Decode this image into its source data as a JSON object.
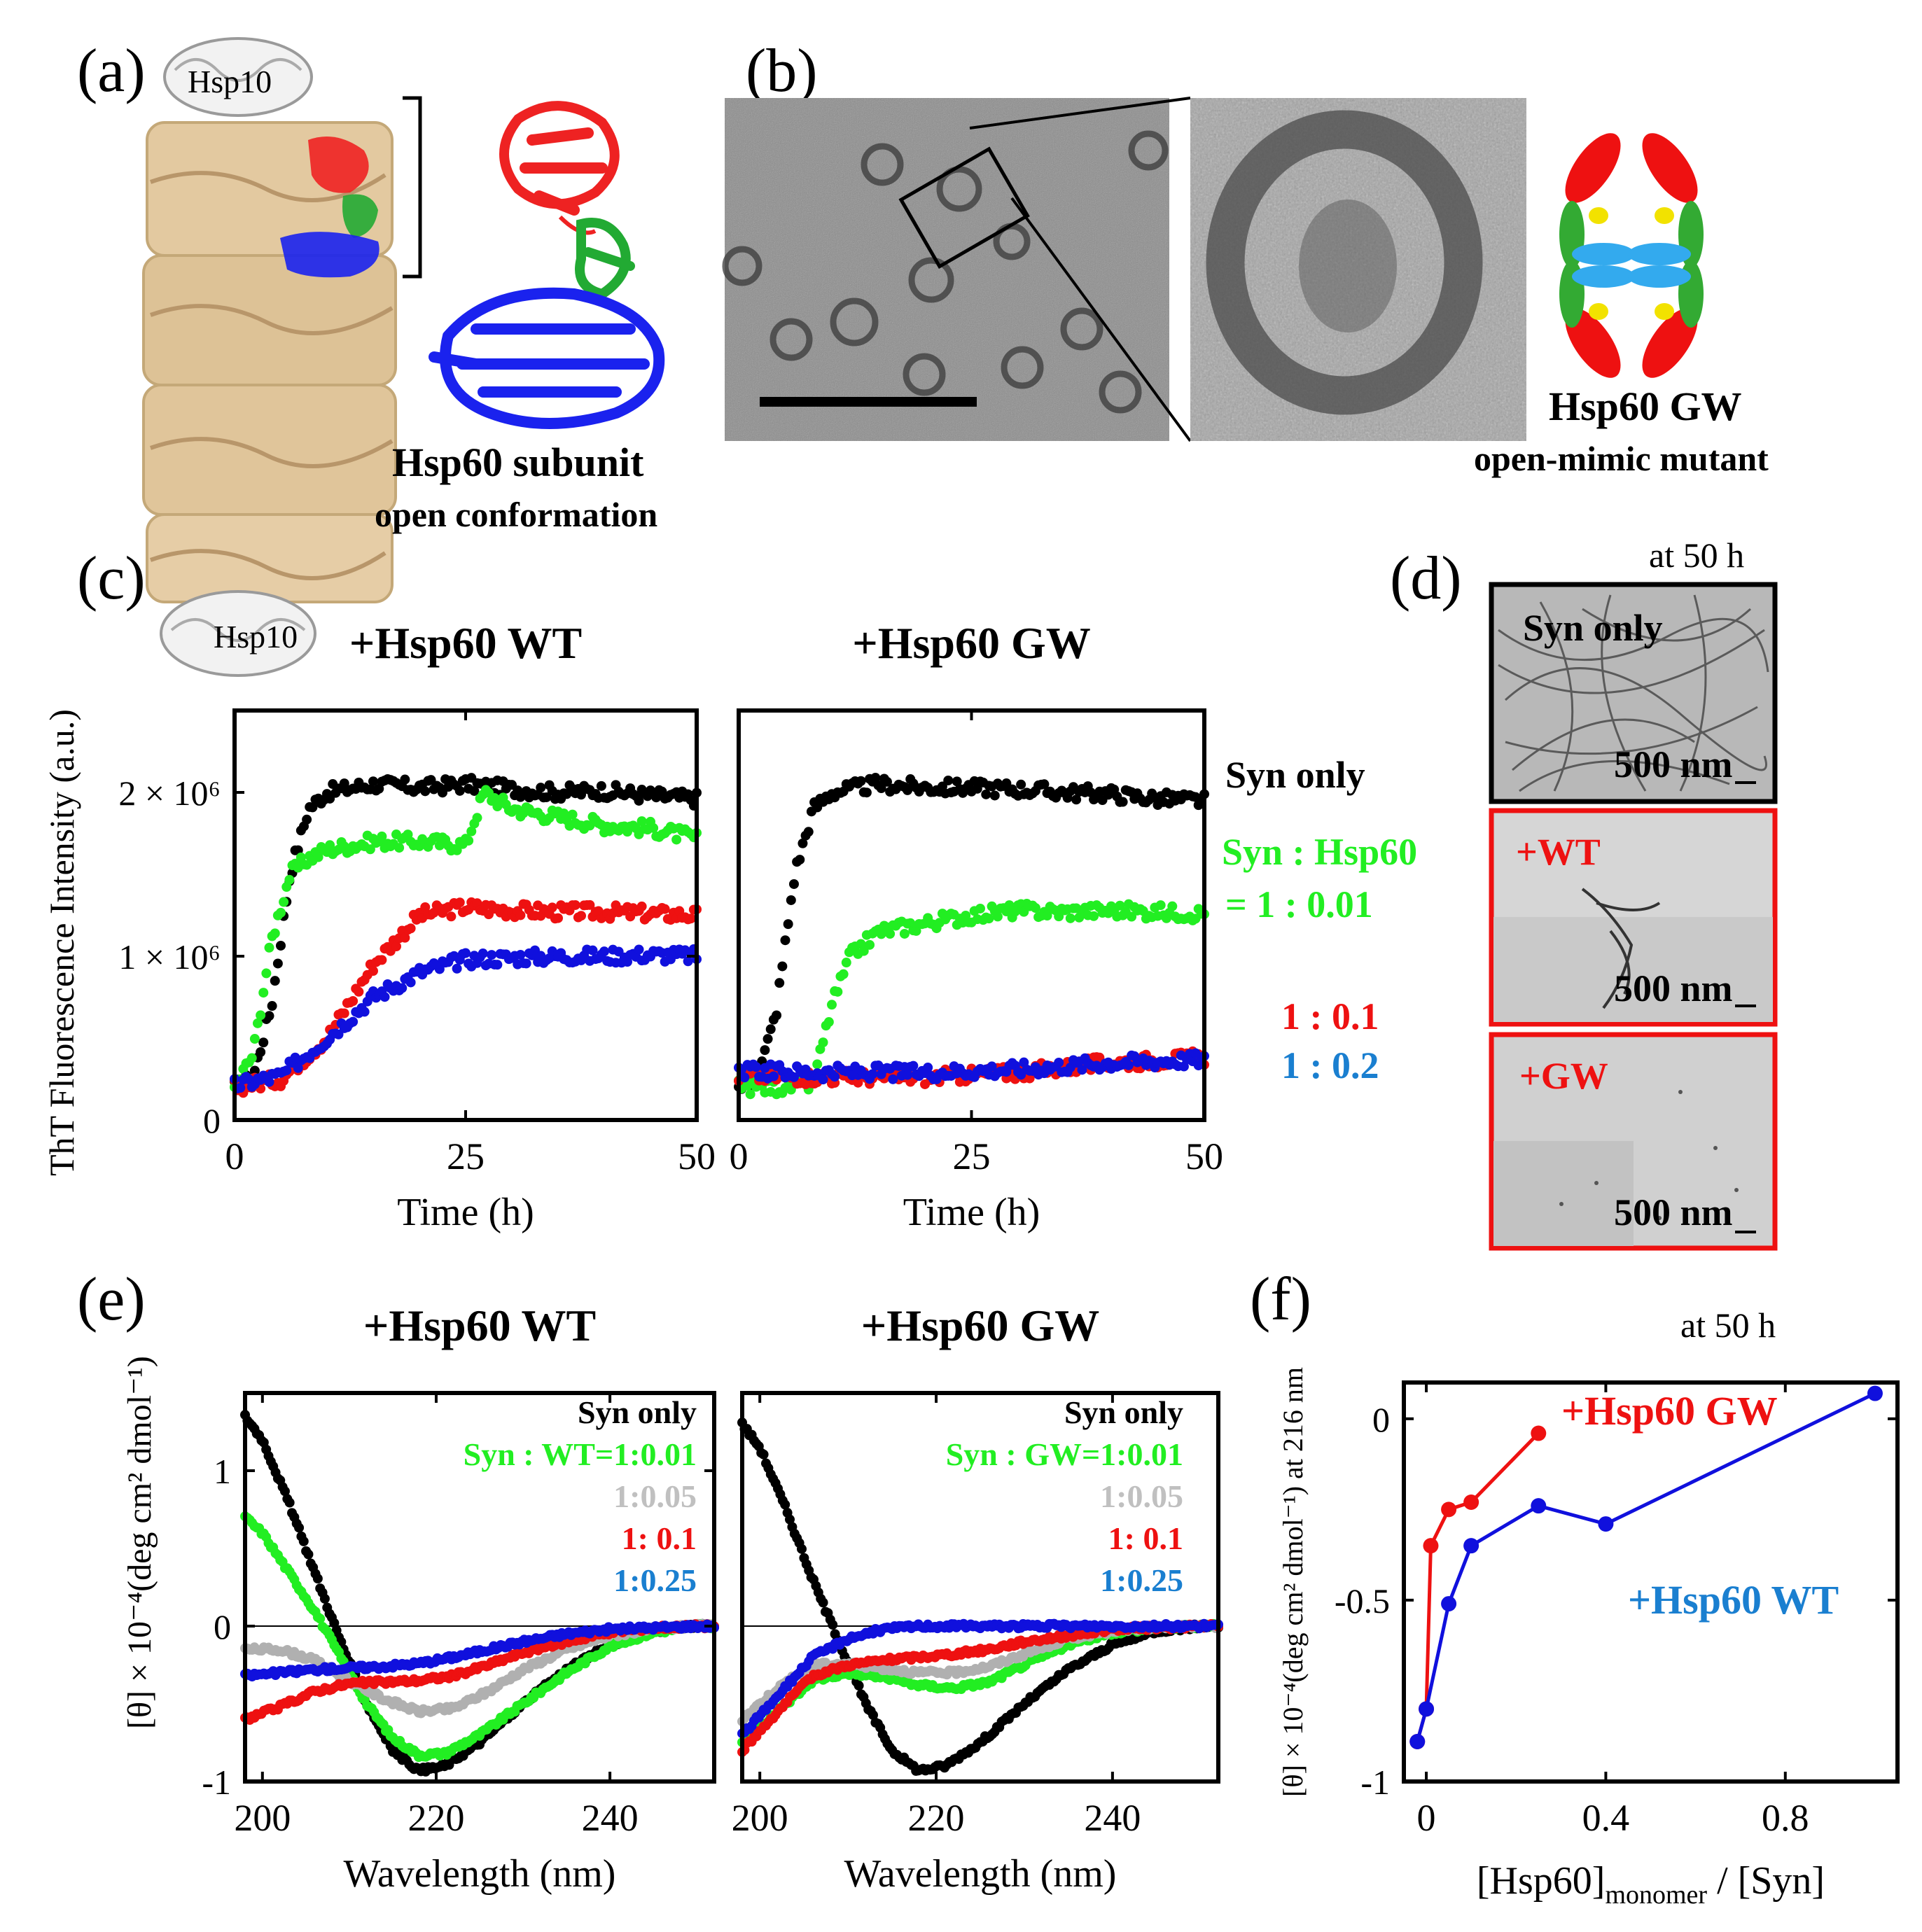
{
  "panels": {
    "a": {
      "label": "(a)",
      "hsp10_top": "Hsp10",
      "hsp10_bottom": "Hsp10",
      "subunit_title": "Hsp60 subunit",
      "subunit_subtitle": "open conformation"
    },
    "b": {
      "label": "(b)",
      "mutant_title": "Hsp60 GW",
      "mutant_subtitle": "open-mimic mutant"
    },
    "c": {
      "label": "(c)",
      "ylabel": "ThT Fluorescence Intensity (a.u.)",
      "legend": {
        "syn_only": "Syn only",
        "ratio_header": "Syn : Hsp60",
        "ratio_001": "= 1 : 0.01",
        "ratio_01": "1 : 0.1",
        "ratio_02": "1 : 0.2"
      }
    },
    "d": {
      "label": "(d)",
      "time_note": "at 50 h",
      "images": [
        {
          "label": "Syn only",
          "scale": "500 nm"
        },
        {
          "label": "+WT",
          "scale": "500 nm"
        },
        {
          "label": "+GW",
          "scale": "500 nm"
        }
      ]
    },
    "e": {
      "label": "(e)",
      "ylabel": "[θ] × 10⁻⁴(deg cm² dmol⁻¹)",
      "legend_wt": [
        "Syn only",
        "Syn : WT=1:0.01",
        "1:0.05",
        "1:  0.1",
        "1:0.25"
      ],
      "legend_gw": [
        "Syn only",
        "Syn : GW=1:0.01",
        "1:0.05",
        "1:  0.1",
        "1:0.25"
      ]
    },
    "f": {
      "label": "(f)",
      "time_note": "at 50 h"
    }
  },
  "colors": {
    "black": "#000000",
    "green": "#22ee22",
    "red": "#ee1111",
    "blue": "#1010dd",
    "gray": "#b0b0b0",
    "teal": "#1a7fd0"
  },
  "chart_data": [
    {
      "id": "c-wt",
      "type": "scatter",
      "title": "+Hsp60 WT",
      "xlabel": "Time (h)",
      "ylabel": "ThT Fluorescence Intensity (a.u.)",
      "xlim": [
        0,
        50
      ],
      "ylim": [
        0,
        2500000
      ],
      "xticks": [
        "0",
        "25",
        "50"
      ],
      "yticks": [
        "0",
        "1 × 10⁶",
        "2 × 10⁶"
      ],
      "series": [
        {
          "name": "Syn only",
          "x": [
            0,
            2,
            4,
            6,
            8,
            10,
            15,
            20,
            25,
            30,
            35,
            40,
            45,
            50
          ],
          "y": [
            200000,
            260000,
            700000,
            1500000,
            1900000,
            2000000,
            2050000,
            2030000,
            2050000,
            2020000,
            2000000,
            2010000,
            1980000,
            1960000
          ]
        },
        {
          "name": "1 : 0.01",
          "x": [
            0,
            2,
            4,
            6,
            8,
            10,
            15,
            20,
            25,
            27,
            30,
            35,
            40,
            45,
            50
          ],
          "y": [
            200000,
            400000,
            1100000,
            1500000,
            1600000,
            1650000,
            1700000,
            1700000,
            1680000,
            2000000,
            1900000,
            1850000,
            1800000,
            1780000,
            1720000
          ]
        },
        {
          "name": "1 : 0.1",
          "x": [
            0,
            5,
            10,
            15,
            20,
            25,
            30,
            35,
            40,
            45,
            50
          ],
          "y": [
            200000,
            250000,
            500000,
            950000,
            1250000,
            1300000,
            1280000,
            1270000,
            1270000,
            1260000,
            1250000
          ]
        },
        {
          "name": "1 : 0.2",
          "x": [
            0,
            5,
            10,
            15,
            20,
            25,
            30,
            35,
            40,
            45,
            50
          ],
          "y": [
            210000,
            270000,
            500000,
            750000,
            900000,
            980000,
            990000,
            1000000,
            1000000,
            1010000,
            1000000
          ]
        }
      ]
    },
    {
      "id": "c-gw",
      "type": "scatter",
      "title": "+Hsp60 GW",
      "xlabel": "Time (h)",
      "xlim": [
        0,
        50
      ],
      "ylim": [
        0,
        2500000
      ],
      "xticks": [
        "0",
        "25",
        "50"
      ],
      "series": [
        {
          "name": "Syn only",
          "x": [
            0,
            2,
            4,
            6,
            8,
            10,
            15,
            20,
            25,
            30,
            35,
            40,
            45,
            50
          ],
          "y": [
            200000,
            250000,
            650000,
            1500000,
            1900000,
            2000000,
            2050000,
            2030000,
            2030000,
            2020000,
            2000000,
            1990000,
            1960000,
            1950000
          ]
        },
        {
          "name": "1 : 0.01",
          "x": [
            0,
            5,
            8,
            10,
            12,
            15,
            20,
            25,
            30,
            35,
            40,
            45,
            50
          ],
          "y": [
            200000,
            200000,
            220000,
            700000,
            1000000,
            1150000,
            1200000,
            1250000,
            1280000,
            1270000,
            1280000,
            1270000,
            1260000
          ]
        },
        {
          "name": "1 : 0.1",
          "x": [
            0,
            10,
            20,
            30,
            40,
            50
          ],
          "y": [
            270000,
            260000,
            260000,
            290000,
            350000,
            380000
          ]
        },
        {
          "name": "1 : 0.2",
          "x": [
            0,
            10,
            20,
            30,
            40,
            50
          ],
          "y": [
            300000,
            290000,
            290000,
            310000,
            350000,
            370000
          ]
        }
      ]
    },
    {
      "id": "e-wt",
      "type": "scatter",
      "title": "+Hsp60 WT",
      "xlabel": "Wavelength (nm)",
      "xlim": [
        198,
        252
      ],
      "ylim": [
        -1,
        1.5
      ],
      "xticks": [
        "200",
        "220",
        "240"
      ],
      "yticks": [
        "-1",
        "0",
        "1"
      ],
      "series": [
        {
          "name": "Syn only",
          "x": [
            198,
            200,
            203,
            206,
            209,
            212,
            215,
            218,
            221,
            225,
            230,
            235,
            240,
            245,
            250,
            252
          ],
          "y": [
            1.35,
            1.2,
            0.8,
            0.35,
            -0.1,
            -0.5,
            -0.8,
            -0.93,
            -0.9,
            -0.75,
            -0.5,
            -0.28,
            -0.12,
            -0.03,
            0,
            0
          ]
        },
        {
          "name": "Syn : WT=1:0.01",
          "x": [
            198,
            200,
            203,
            206,
            209,
            212,
            215,
            218,
            221,
            225,
            230,
            235,
            240,
            245,
            250,
            252
          ],
          "y": [
            0.7,
            0.6,
            0.35,
            0.1,
            -0.2,
            -0.5,
            -0.72,
            -0.83,
            -0.82,
            -0.7,
            -0.5,
            -0.3,
            -0.13,
            -0.04,
            0,
            0
          ]
        },
        {
          "name": "1:0.05",
          "x": [
            198,
            202,
            206,
            210,
            214,
            218,
            222,
            226,
            230,
            235,
            240,
            245,
            250,
            252
          ],
          "y": [
            -0.15,
            -0.15,
            -0.22,
            -0.35,
            -0.47,
            -0.55,
            -0.53,
            -0.42,
            -0.28,
            -0.15,
            -0.06,
            -0.02,
            0,
            0
          ]
        },
        {
          "name": "1:  0.1",
          "x": [
            198,
            202,
            206,
            210,
            214,
            218,
            222,
            226,
            230,
            235,
            240,
            245,
            250,
            252
          ],
          "y": [
            -0.6,
            -0.52,
            -0.42,
            -0.37,
            -0.36,
            -0.35,
            -0.32,
            -0.25,
            -0.17,
            -0.1,
            -0.04,
            -0.01,
            0,
            0
          ]
        },
        {
          "name": "1:0.25",
          "x": [
            198,
            202,
            206,
            210,
            214,
            218,
            222,
            226,
            230,
            235,
            240,
            245,
            250,
            252
          ],
          "y": [
            -0.32,
            -0.3,
            -0.28,
            -0.27,
            -0.26,
            -0.24,
            -0.2,
            -0.15,
            -0.1,
            -0.05,
            -0.02,
            -0.01,
            0,
            0
          ]
        }
      ]
    },
    {
      "id": "e-gw",
      "type": "scatter",
      "title": "+Hsp60 GW",
      "xlabel": "Wavelength (nm)",
      "xlim": [
        198,
        252
      ],
      "ylim": [
        -1,
        1.5
      ],
      "xticks": [
        "200",
        "220",
        "240"
      ],
      "series": [
        {
          "name": "Syn only",
          "x": [
            198,
            200,
            203,
            206,
            209,
            212,
            215,
            218,
            221,
            225,
            230,
            235,
            240,
            245,
            250,
            252
          ],
          "y": [
            1.3,
            1.15,
            0.75,
            0.3,
            -0.1,
            -0.5,
            -0.8,
            -0.93,
            -0.9,
            -0.75,
            -0.5,
            -0.28,
            -0.12,
            -0.03,
            0,
            0
          ]
        },
        {
          "name": "Syn : GW=1:0.01",
          "x": [
            198,
            202,
            206,
            210,
            214,
            218,
            222,
            226,
            230,
            235,
            240,
            245,
            250,
            252
          ],
          "y": [
            -0.75,
            -0.55,
            -0.35,
            -0.3,
            -0.33,
            -0.38,
            -0.4,
            -0.36,
            -0.25,
            -0.12,
            -0.04,
            -0.01,
            0,
            0
          ]
        },
        {
          "name": "1:0.05",
          "x": [
            198,
            202,
            206,
            210,
            214,
            218,
            222,
            226,
            230,
            235,
            240,
            245,
            250,
            252
          ],
          "y": [
            -0.6,
            -0.4,
            -0.25,
            -0.24,
            -0.27,
            -0.3,
            -0.3,
            -0.26,
            -0.18,
            -0.08,
            -0.03,
            -0.01,
            0,
            0
          ]
        },
        {
          "name": "1:  0.1",
          "x": [
            198,
            202,
            206,
            210,
            214,
            218,
            222,
            226,
            230,
            235,
            240,
            245,
            250,
            252
          ],
          "y": [
            -0.8,
            -0.55,
            -0.32,
            -0.25,
            -0.22,
            -0.2,
            -0.18,
            -0.15,
            -0.1,
            -0.06,
            -0.02,
            -0.01,
            0,
            0
          ]
        },
        {
          "name": "1:0.25",
          "x": [
            198,
            202,
            206,
            210,
            214,
            218,
            222,
            226,
            230,
            235,
            240,
            245,
            250,
            252
          ],
          "y": [
            -0.7,
            -0.45,
            -0.2,
            -0.08,
            -0.02,
            0,
            0,
            0,
            0,
            0,
            0,
            0,
            0,
            0
          ]
        }
      ]
    },
    {
      "id": "f",
      "type": "line",
      "xlabel": "[Hsp60]monomer / [Syn]",
      "ylabel": "[θ] × 10⁻⁴(deg cm² dmol⁻¹) at 216 nm",
      "xlim": [
        -0.05,
        1.05
      ],
      "ylim": [
        -1,
        0.1
      ],
      "xticks": [
        "0",
        "0.4",
        "0.8"
      ],
      "yticks": [
        "-1",
        "-0.5",
        "0"
      ],
      "series": [
        {
          "name": "+Hsp60 GW",
          "x": [
            -0.02,
            0,
            0.01,
            0.05,
            0.1,
            0.25
          ],
          "y": [
            -0.89,
            -0.8,
            -0.35,
            -0.25,
            -0.23,
            -0.04
          ]
        },
        {
          "name": "+Hsp60 WT",
          "x": [
            -0.02,
            0,
            0.05,
            0.1,
            0.25,
            0.4,
            1.0
          ],
          "y": [
            -0.89,
            -0.8,
            -0.51,
            -0.35,
            -0.24,
            -0.29,
            0.07
          ]
        }
      ]
    }
  ]
}
